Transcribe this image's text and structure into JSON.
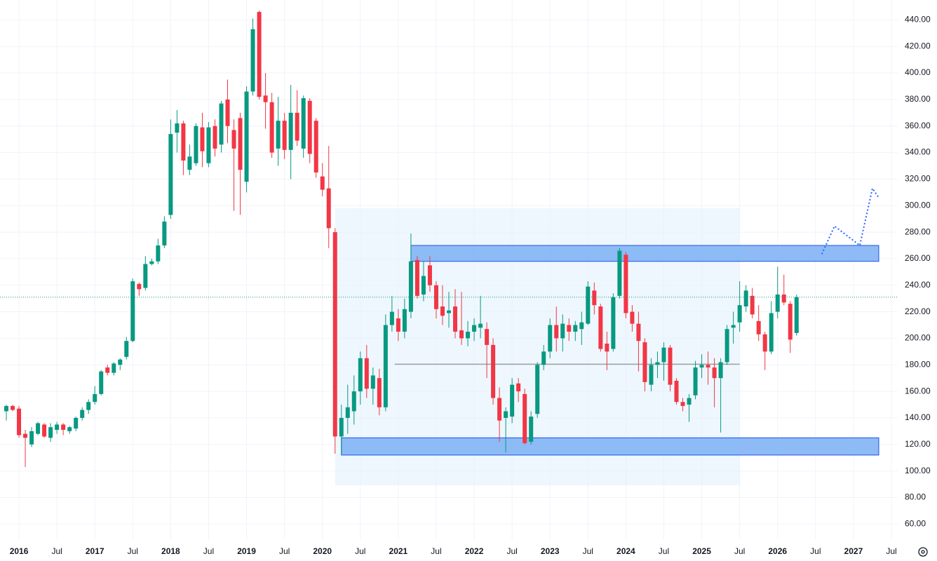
{
  "chart_data": {
    "type": "candlestick",
    "x": [
      "2015-11",
      "2015-12",
      "2016-01",
      "2016-02",
      "2016-03",
      "2016-04",
      "2016-05",
      "2016-06",
      "2016-07",
      "2016-08",
      "2016-09",
      "2016-10",
      "2016-11",
      "2016-12",
      "2017-01",
      "2017-02",
      "2017-03",
      "2017-04",
      "2017-05",
      "2017-06",
      "2017-07",
      "2017-08",
      "2017-09",
      "2017-10",
      "2017-11",
      "2017-12",
      "2018-01",
      "2018-02",
      "2018-03",
      "2018-04",
      "2018-05",
      "2018-06",
      "2018-07",
      "2018-08",
      "2018-09",
      "2018-10",
      "2018-11",
      "2018-12",
      "2019-01",
      "2019-02",
      "2019-03",
      "2019-04",
      "2019-05",
      "2019-06",
      "2019-07",
      "2019-08",
      "2019-09",
      "2019-10",
      "2019-11",
      "2019-12",
      "2020-01",
      "2020-02",
      "2020-03",
      "2020-04",
      "2020-05",
      "2020-06",
      "2020-07",
      "2020-08",
      "2020-09",
      "2020-10",
      "2020-11",
      "2020-12",
      "2021-01",
      "2021-02",
      "2021-03",
      "2021-04",
      "2021-05",
      "2021-06",
      "2021-07",
      "2021-08",
      "2021-09",
      "2021-10",
      "2021-11",
      "2021-12",
      "2022-01",
      "2022-02",
      "2022-03",
      "2022-04",
      "2022-05",
      "2022-06",
      "2022-07",
      "2022-08",
      "2022-09",
      "2022-10",
      "2022-11",
      "2022-12",
      "2023-01",
      "2023-02",
      "2023-03",
      "2023-04",
      "2023-05",
      "2023-06",
      "2023-07",
      "2023-08",
      "2023-09",
      "2023-10",
      "2023-11",
      "2023-12",
      "2024-01",
      "2024-02",
      "2024-03",
      "2024-04",
      "2024-05",
      "2024-06",
      "2024-07",
      "2024-08",
      "2024-09",
      "2024-10",
      "2024-11",
      "2024-12",
      "2025-01",
      "2025-02",
      "2025-03",
      "2025-04",
      "2025-05",
      "2025-06",
      "2025-07",
      "2025-08",
      "2025-09",
      "2025-10",
      "2025-11",
      "2025-12",
      "2026-01",
      "2026-02",
      "2026-03",
      "2026-04"
    ],
    "open": [
      145,
      149,
      147,
      128,
      120,
      128,
      135,
      125,
      131,
      135,
      130,
      132,
      140,
      146,
      152,
      158,
      178,
      174,
      180,
      186,
      198,
      241,
      238,
      256,
      258,
      270,
      293,
      355,
      362,
      327,
      332,
      359,
      332,
      360,
      346,
      380,
      357,
      366,
      318,
      386,
      446,
      383,
      378,
      343,
      364,
      342,
      370,
      343,
      379,
      364,
      322,
      313,
      280,
      126,
      140,
      145,
      160,
      185,
      162,
      170,
      148,
      210,
      215,
      205,
      220,
      259,
      233,
      255,
      240,
      224,
      219,
      224,
      206,
      200,
      205,
      208,
      207,
      195,
      155,
      140,
      141,
      166,
      158,
      122,
      143,
      180,
      190,
      210,
      200,
      210,
      205,
      207,
      211,
      236,
      224,
      196,
      192,
      232,
      263,
      220,
      211,
      197,
      165,
      180,
      182,
      193,
      168,
      152,
      150,
      157,
      178,
      180,
      178,
      170,
      182,
      208,
      212,
      224,
      232,
      213,
      203,
      190,
      220,
      233,
      226,
      204
    ],
    "high": [
      150,
      150,
      149,
      131,
      133,
      137,
      136,
      136,
      137,
      136,
      134,
      141,
      148,
      154,
      164,
      176,
      180,
      182,
      185,
      201,
      245,
      242,
      262,
      260,
      275,
      292,
      365,
      372,
      364,
      346,
      362,
      370,
      363,
      365,
      379,
      395,
      365,
      370,
      390,
      441,
      447,
      400,
      385,
      382,
      370,
      391,
      387,
      383,
      381,
      366,
      332,
      345,
      283,
      150,
      165,
      172,
      190,
      195,
      178,
      177,
      218,
      232,
      222,
      230,
      279,
      262,
      258,
      262,
      243,
      240,
      235,
      237,
      235,
      213,
      215,
      232,
      212,
      200,
      163,
      148,
      170,
      170,
      162,
      145,
      182,
      195,
      215,
      224,
      218,
      215,
      213,
      220,
      243,
      242,
      226,
      205,
      234,
      268,
      265,
      225,
      220,
      200,
      185,
      190,
      197,
      195,
      170,
      155,
      158,
      183,
      188,
      190,
      185,
      185,
      210,
      220,
      243,
      240,
      238,
      225,
      205,
      228,
      254,
      248,
      228,
      233
    ],
    "low": [
      138,
      145,
      125,
      103,
      118,
      127,
      125,
      122,
      128,
      127,
      128,
      130,
      138,
      143,
      150,
      157,
      172,
      172,
      176,
      184,
      197,
      232,
      236,
      255,
      256,
      268,
      290,
      340,
      323,
      323,
      330,
      329,
      329,
      337,
      340,
      347,
      296,
      293,
      310,
      383,
      380,
      358,
      336,
      330,
      335,
      320,
      345,
      336,
      332,
      321,
      307,
      268,
      113,
      113,
      128,
      135,
      150,
      155,
      150,
      142,
      145,
      205,
      198,
      200,
      215,
      230,
      228,
      235,
      215,
      210,
      208,
      200,
      195,
      194,
      198,
      200,
      170,
      150,
      122,
      114,
      136,
      152,
      120,
      120,
      140,
      176,
      185,
      190,
      190,
      198,
      198,
      195,
      210,
      218,
      190,
      176,
      190,
      230,
      215,
      205,
      175,
      160,
      160,
      170,
      168,
      160,
      150,
      145,
      137,
      154,
      170,
      165,
      148,
      129,
      180,
      196,
      205,
      220,
      215,
      198,
      176,
      188,
      215,
      225,
      189,
      202
    ],
    "close": [
      149,
      146,
      127,
      125,
      130,
      136,
      126,
      133,
      135,
      131,
      133,
      140,
      146,
      152,
      158,
      175,
      174,
      181,
      184,
      198,
      243,
      237,
      256,
      258,
      270,
      288,
      354,
      362,
      334,
      337,
      360,
      341,
      359,
      343,
      377,
      360,
      343,
      327,
      386,
      433,
      382,
      378,
      340,
      364,
      342,
      370,
      349,
      381,
      339,
      325,
      312,
      283,
      126,
      140,
      148,
      160,
      185,
      162,
      172,
      148,
      210,
      220,
      205,
      222,
      258,
      232,
      247,
      240,
      222,
      217,
      221,
      205,
      200,
      205,
      210,
      211,
      195,
      155,
      138,
      145,
      165,
      160,
      121,
      141,
      180,
      190,
      210,
      200,
      211,
      205,
      210,
      212,
      239,
      225,
      192,
      190,
      231,
      266,
      219,
      211,
      198,
      167,
      180,
      182,
      193,
      165,
      152,
      149,
      155,
      178,
      180,
      178,
      170,
      182,
      207,
      210,
      225,
      236,
      218,
      203,
      190,
      219,
      233,
      227,
      199,
      231
    ],
    "up_color": "#089981",
    "down_color": "#f23645",
    "xlim": [
      "2015-10",
      "2027-08"
    ],
    "ylim": [
      48,
      455
    ],
    "yticks": [
      {
        "value": 60,
        "label": "60.00"
      },
      {
        "value": 80,
        "label": "80.00"
      },
      {
        "value": 100,
        "label": "100.00"
      },
      {
        "value": 120,
        "label": "120.00"
      },
      {
        "value": 140,
        "label": "140.00"
      },
      {
        "value": 160,
        "label": "160.00"
      },
      {
        "value": 180,
        "label": "180.00"
      },
      {
        "value": 200,
        "label": "200.00"
      },
      {
        "value": 220,
        "label": "220.00"
      },
      {
        "value": 240,
        "label": "240.00"
      },
      {
        "value": 260,
        "label": "260.00"
      },
      {
        "value": 280,
        "label": "280.00"
      },
      {
        "value": 300,
        "label": "300.00"
      },
      {
        "value": 320,
        "label": "320.00"
      },
      {
        "value": 340,
        "label": "340.00"
      },
      {
        "value": 360,
        "label": "360.00"
      },
      {
        "value": 380,
        "label": "380.00"
      },
      {
        "value": 400,
        "label": "400.00"
      },
      {
        "value": 420,
        "label": "420.00"
      },
      {
        "value": 440,
        "label": "440.00"
      }
    ],
    "xticks": [
      {
        "value": "2016-01",
        "label": "2016"
      },
      {
        "value": "2016-07",
        "label": "Jul"
      },
      {
        "value": "2017-01",
        "label": "2017"
      },
      {
        "value": "2017-07",
        "label": "Jul"
      },
      {
        "value": "2018-01",
        "label": "2018"
      },
      {
        "value": "2018-07",
        "label": "Jul"
      },
      {
        "value": "2019-01",
        "label": "2019"
      },
      {
        "value": "2019-07",
        "label": "Jul"
      },
      {
        "value": "2020-01",
        "label": "2020"
      },
      {
        "value": "2020-07",
        "label": "Jul"
      },
      {
        "value": "2021-01",
        "label": "2021"
      },
      {
        "value": "2021-07",
        "label": "Jul"
      },
      {
        "value": "2022-01",
        "label": "2022"
      },
      {
        "value": "2022-07",
        "label": "Jul"
      },
      {
        "value": "2023-01",
        "label": "2023"
      },
      {
        "value": "2023-07",
        "label": "Jul"
      },
      {
        "value": "2024-01",
        "label": "2024"
      },
      {
        "value": "2024-07",
        "label": "Jul"
      },
      {
        "value": "2025-01",
        "label": "2025"
      },
      {
        "value": "2025-07",
        "label": "Jul"
      },
      {
        "value": "2026-01",
        "label": "2026"
      },
      {
        "value": "2026-07",
        "label": "Jul"
      },
      {
        "value": "2027-01",
        "label": "2027"
      },
      {
        "value": "2027-07",
        "label": "Jul"
      }
    ],
    "grid": true,
    "zones": [
      {
        "start": "2021-03",
        "end": "2027-05",
        "bottom": 258,
        "top": 270,
        "color": "#82b4f5"
      },
      {
        "start": "2020-04",
        "end": "2027-05",
        "bottom": 112,
        "top": 125,
        "color": "#82b4f5"
      }
    ],
    "profile_region": {
      "start": "2020-03",
      "end": "2025-07",
      "bottom": 89,
      "top": 298,
      "color": "#e3f2fd",
      "poc": 180.5
    },
    "projection": {
      "x": [
        "2026-08",
        "2026-10",
        "2027-02",
        "2027-04",
        "2027-05"
      ],
      "values": [
        263.5,
        284.6,
        270,
        313,
        306
      ],
      "color": "#2962ff"
    }
  }
}
